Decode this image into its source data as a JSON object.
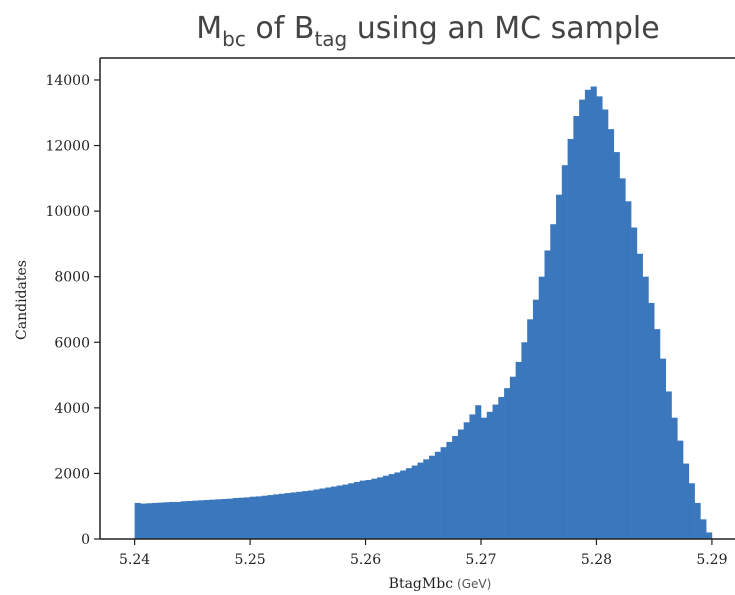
{
  "chart_data": {
    "type": "histogram",
    "title": [
      "M",
      "bc",
      " of B",
      "tag",
      " using an MC sample"
    ],
    "xlabel": "BtagMbc",
    "xlabel_unit": "(GeV)",
    "ylabel": "Candidates",
    "color": "#3a77bd",
    "xlim": [
      5.237,
      5.292
    ],
    "ylim": [
      0,
      14670
    ],
    "xticks": [
      5.24,
      5.25,
      5.26,
      5.27,
      5.28,
      5.29
    ],
    "yticks": [
      0,
      2000,
      4000,
      6000,
      8000,
      10000,
      12000,
      14000
    ],
    "bins": [
      5.24,
      5.2405,
      5.241,
      5.2415,
      5.242,
      5.2425,
      5.243,
      5.2435,
      5.244,
      5.2445,
      5.245,
      5.2455,
      5.246,
      5.2465,
      5.247,
      5.2475,
      5.248,
      5.2485,
      5.249,
      5.2495,
      5.25,
      5.2505,
      5.251,
      5.2515,
      5.252,
      5.2525,
      5.253,
      5.2535,
      5.254,
      5.2545,
      5.255,
      5.2555,
      5.256,
      5.2565,
      5.257,
      5.2575,
      5.258,
      5.2585,
      5.259,
      5.2595,
      5.26,
      5.2605,
      5.261,
      5.2615,
      5.262,
      5.2625,
      5.263,
      5.2635,
      5.264,
      5.2645,
      5.265,
      5.2655,
      5.266,
      5.2665,
      5.267,
      5.2675,
      5.268,
      5.2685,
      5.269,
      5.2695,
      5.27,
      5.2705,
      5.271,
      5.2715,
      5.272,
      5.2725,
      5.273,
      5.2735,
      5.274,
      5.2745,
      5.275,
      5.2755,
      5.276,
      5.2765,
      5.277,
      5.2775,
      5.278,
      5.2785,
      5.279,
      5.2795,
      5.28,
      5.2805,
      5.281,
      5.2815,
      5.282,
      5.2825,
      5.283,
      5.2835,
      5.284,
      5.2845,
      5.285,
      5.2855,
      5.286,
      5.2865,
      5.287,
      5.2875,
      5.288,
      5.2885,
      5.289,
      5.2895,
      5.29
    ],
    "values": [
      1100,
      1080,
      1090,
      1100,
      1110,
      1120,
      1130,
      1130,
      1150,
      1160,
      1170,
      1180,
      1190,
      1200,
      1210,
      1220,
      1230,
      1250,
      1260,
      1270,
      1290,
      1300,
      1320,
      1340,
      1360,
      1380,
      1400,
      1420,
      1440,
      1460,
      1480,
      1510,
      1540,
      1570,
      1600,
      1630,
      1660,
      1700,
      1740,
      1780,
      1800,
      1840,
      1880,
      1930,
      1980,
      2030,
      2090,
      2160,
      2240,
      2330,
      2430,
      2540,
      2660,
      2800,
      2960,
      3140,
      3340,
      3560,
      3800,
      4080,
      3700,
      3880,
      4100,
      4330,
      4600,
      4950,
      5400,
      6000,
      6700,
      7300,
      8000,
      8800,
      9600,
      10500,
      11400,
      12200,
      12900,
      13400,
      13700,
      13800,
      13500,
      13100,
      12500,
      11800,
      11000,
      10300,
      9500,
      8700,
      8000,
      7200,
      6400,
      5500,
      4500,
      3700,
      3000,
      2300,
      1700,
      1100,
      600,
      200
    ]
  }
}
